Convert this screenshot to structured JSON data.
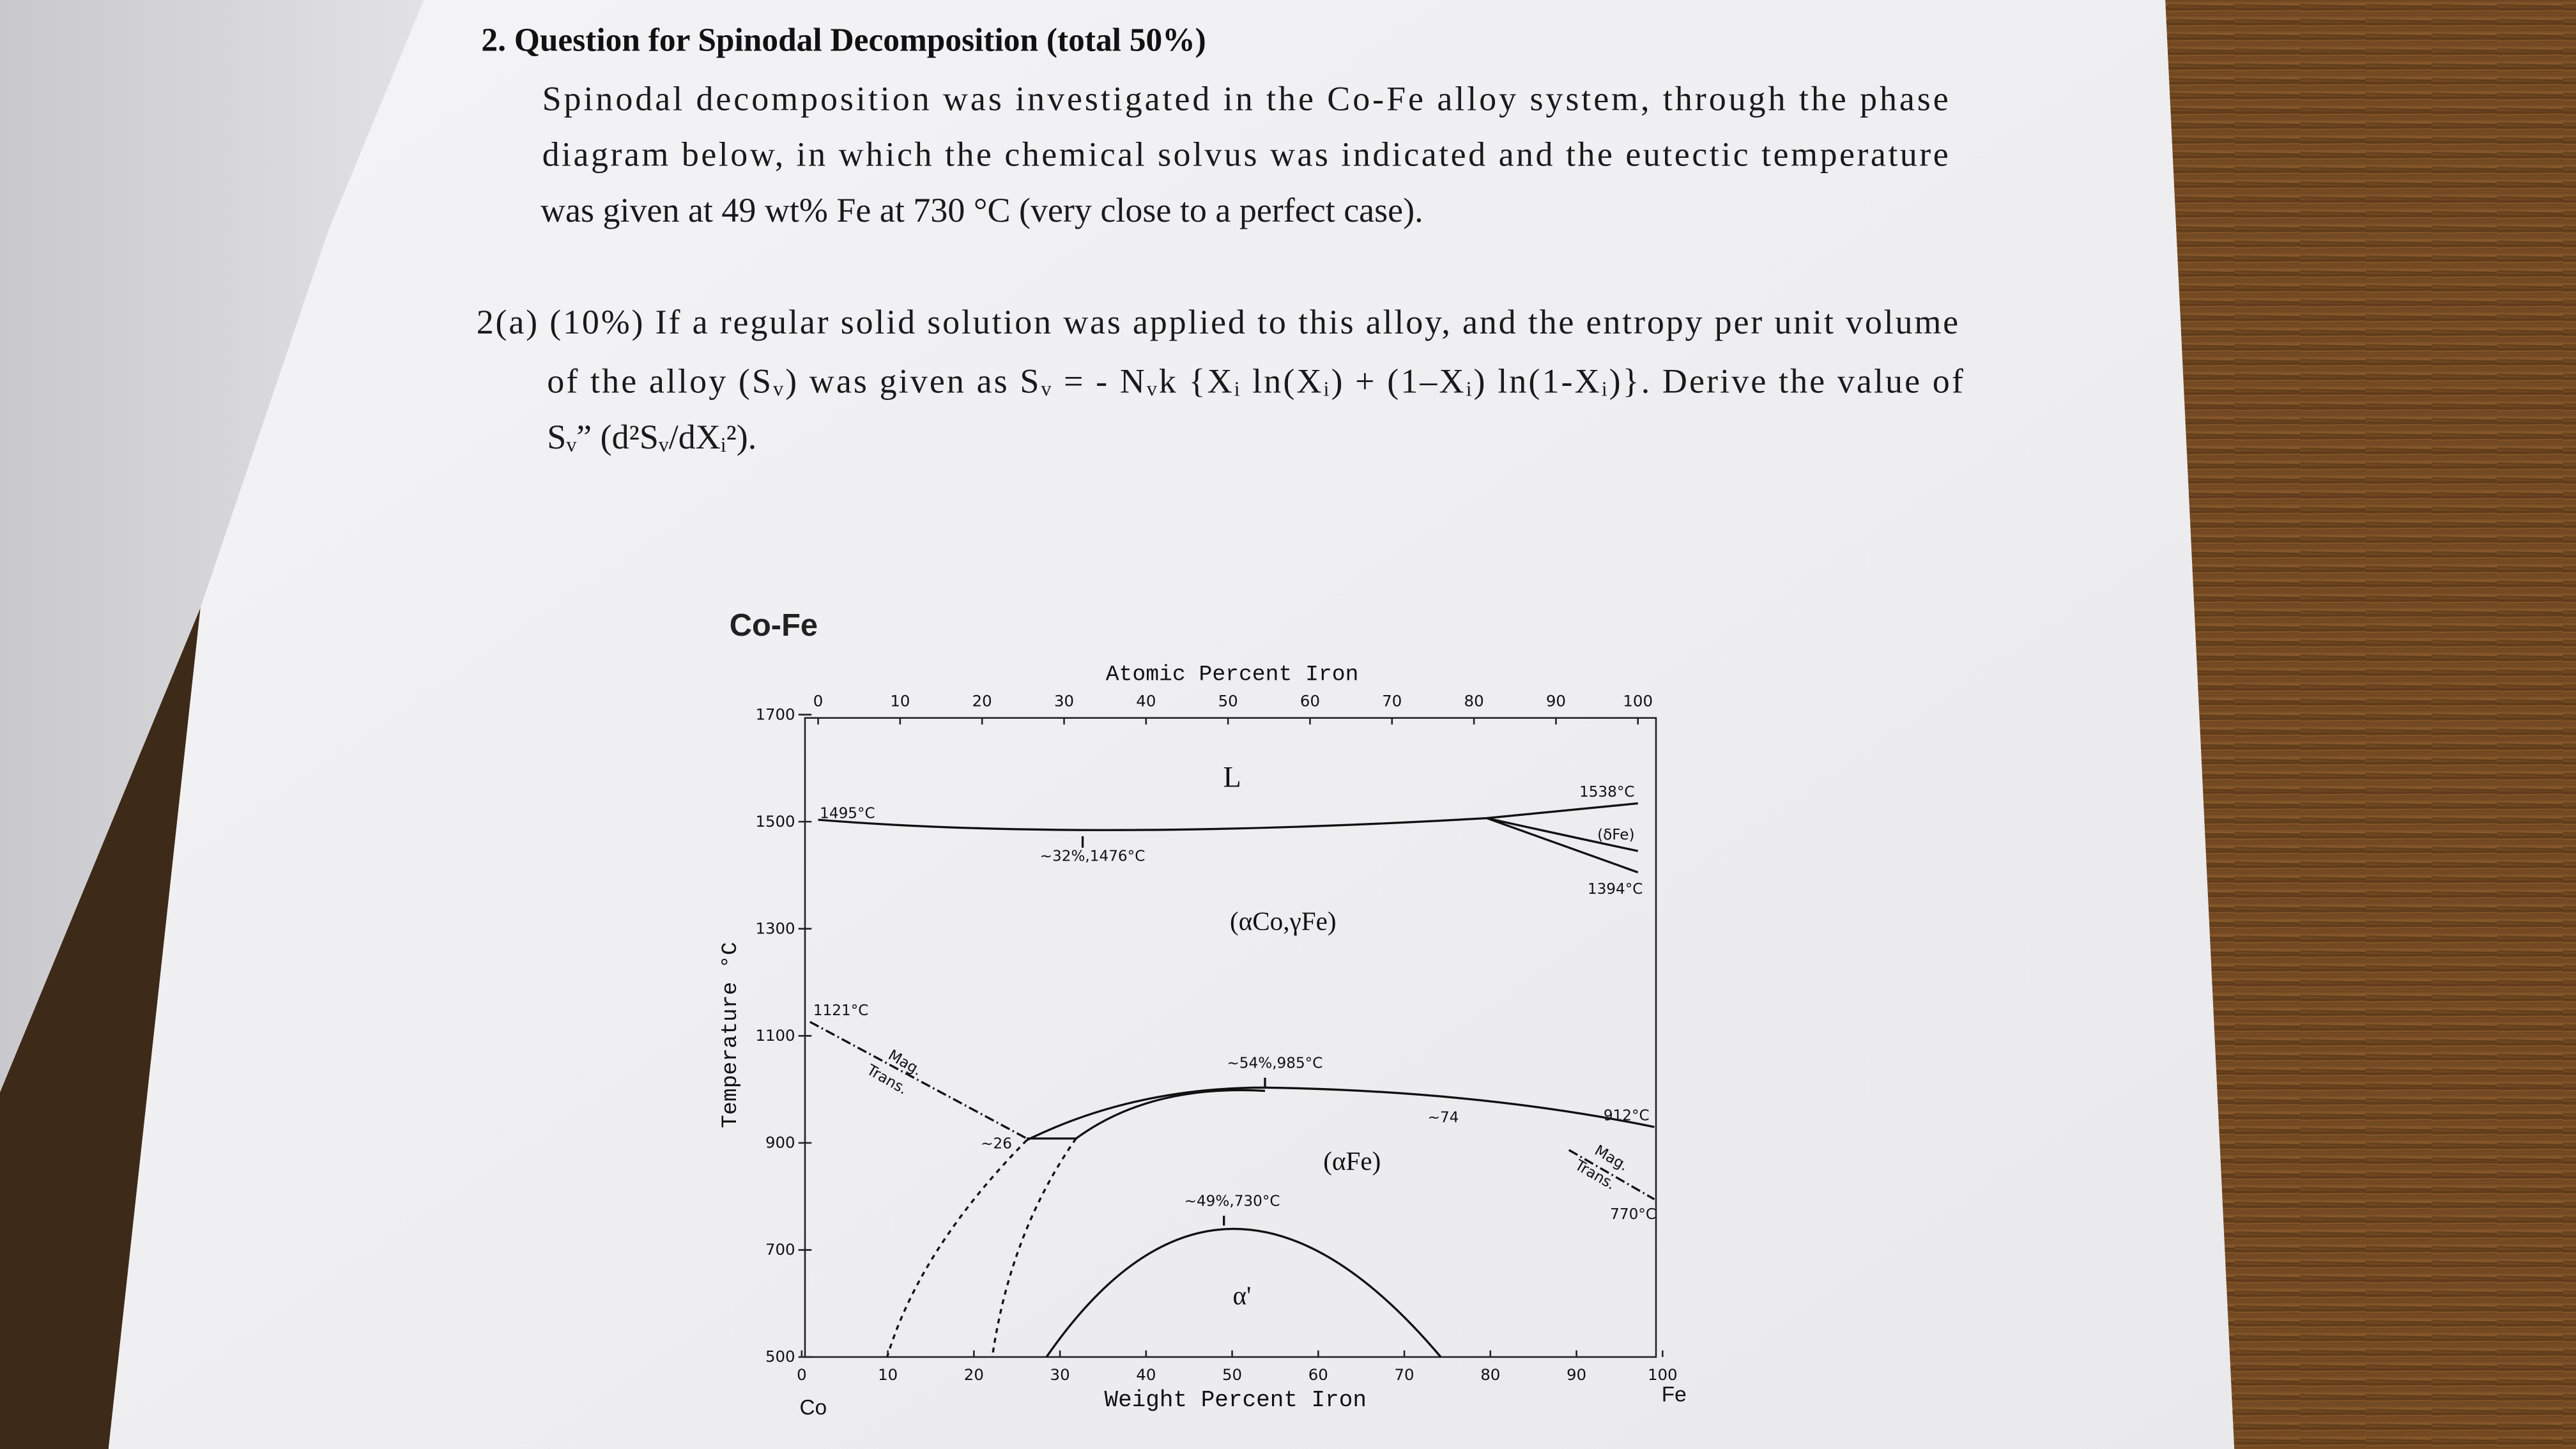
{
  "question": {
    "heading": "2. Question for Spinodal Decomposition (total 50%)",
    "lines": [
      "Spinodal decomposition was investigated in the Co-Fe alloy system, through the phase",
      "diagram below, in which the chemical solvus was indicated and the eutectic temperature",
      "was given at 49 wt% Fe at 730 °C (very close to a perfect case)."
    ]
  },
  "part_a": {
    "lines": [
      "2(a) (10%) If a regular solid solution was applied to this alloy, and the entropy per unit volume",
      "of the alloy (Sᵥ) was given as Sᵥ = - Nᵥk {Xᵢ ln(Xᵢ) + (1–Xᵢ) ln(1-Xᵢ)}. Derive the value of",
      "Sᵥ” (d²Sᵥ/dXᵢ²)."
    ]
  },
  "figure": {
    "title": "Co-Fe",
    "top_axis": {
      "label": "Atomic Percent Iron",
      "ticks": [
        0,
        10,
        20,
        30,
        40,
        50,
        60,
        70,
        80,
        90,
        100
      ]
    },
    "bottom_axis": {
      "label": "Weight Percent Iron",
      "ticks": [
        0,
        10,
        20,
        30,
        40,
        50,
        60,
        70,
        80,
        90,
        100
      ]
    },
    "y_axis": {
      "label": "Temperature °C",
      "ticks": [
        500,
        700,
        900,
        1100,
        1300,
        1500,
        1700
      ]
    },
    "end_labels": [
      "Co",
      "Fe"
    ],
    "annotations": [
      "L",
      "1495°C",
      "~32%,1476°C",
      "1538°C",
      "(δFe)",
      "1394°C",
      "(αCo,γFe)",
      "1121°C",
      "Mag.",
      "Trans.",
      "~26",
      "~54%,985°C",
      "~74",
      "912°C",
      "(αFe)",
      "Mag.",
      "Trans.",
      "770°C",
      "~49%,730°C",
      "α'"
    ]
  }
}
